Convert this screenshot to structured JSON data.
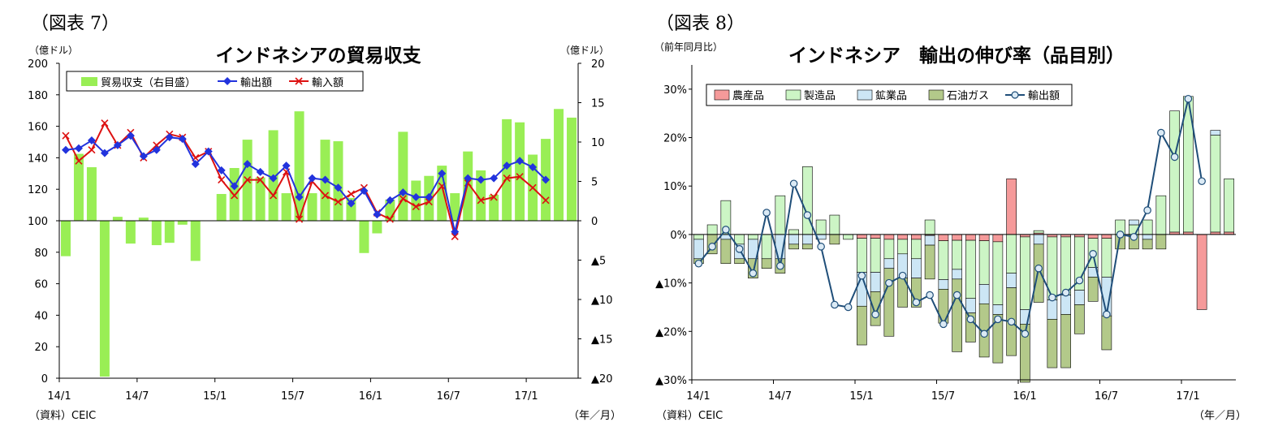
{
  "chart_data": [
    {
      "type": "bar+line",
      "figure_label": "（図表 7）",
      "title": "インドネシアの貿易収支",
      "left_unit": "（億ドル）",
      "right_unit": "（億ドル）",
      "source": "（資料）CEIC",
      "x_unit": "（年／月）",
      "left_ylim": [
        0,
        200
      ],
      "left_ticks": [
        "0",
        "20",
        "40",
        "60",
        "80",
        "100",
        "120",
        "140",
        "160",
        "180",
        "200"
      ],
      "right_ylim": [
        -20,
        20
      ],
      "right_ticks": [
        "▲20",
        "▲15",
        "▲10",
        "▲5",
        "0",
        "5",
        "10",
        "15",
        "20"
      ],
      "x_ticks": [
        "14/1",
        "14/7",
        "15/1",
        "15/7",
        "16/1",
        "16/7",
        "17/1"
      ],
      "series": [
        {
          "name": "貿易収支（右目盛）",
          "color": "#99ee55",
          "axis": "right",
          "values": [
            -4.5,
            8.5,
            6.8,
            -19.8,
            0.5,
            -2.9,
            0.4,
            -3.1,
            -2.8,
            -0.5,
            -5.1,
            0,
            3.4,
            6.7,
            10.3,
            5.5,
            11.5,
            3.5,
            13.9,
            3.5,
            10.3,
            10.1,
            2.9,
            -4.1,
            -1.6,
            2.7,
            11.3,
            5.1,
            5.7,
            7.0,
            3.5,
            8.8,
            6.4,
            3.3,
            12.9,
            12.5,
            8.4,
            10.4,
            14.2,
            13.1
          ]
        },
        {
          "name": "輸出額",
          "color": "#2233dd",
          "axis": "left",
          "values": [
            145,
            146,
            151,
            143,
            148,
            154,
            141,
            145,
            153,
            152,
            136,
            144,
            132,
            122,
            136,
            131,
            127,
            135,
            115,
            127,
            126,
            121,
            111,
            119,
            104,
            113,
            118,
            115,
            115,
            130,
            93,
            127,
            126,
            127,
            135,
            138,
            134,
            126,
            null,
            null
          ]
        },
        {
          "name": "輸入額",
          "color": "#dd1111",
          "axis": "left",
          "values": [
            154,
            138,
            145,
            162,
            148,
            156,
            140,
            148,
            155,
            153,
            140,
            144,
            126,
            116,
            126,
            126,
            116,
            131,
            101,
            125,
            116,
            112,
            117,
            121,
            105,
            101,
            114,
            109,
            112,
            122,
            90,
            124,
            113,
            115,
            127,
            128,
            121,
            113,
            null,
            null
          ]
        }
      ]
    },
    {
      "type": "stacked-bar+line",
      "figure_label": "（図表 8）",
      "title": "インドネシア　輸出の伸び率（品目別）",
      "y_unit": "（前年同月比）",
      "source": "（資料）CEIC",
      "x_unit": "（年／月）",
      "ylim": [
        -30,
        35
      ],
      "y_ticks": [
        "▲30%",
        "▲20%",
        "▲10%",
        "0%",
        "10%",
        "20%",
        "30%"
      ],
      "x_ticks": [
        "14/1",
        "14/7",
        "15/1",
        "15/7",
        "16/1",
        "16/7",
        "17/1"
      ],
      "series": [
        {
          "name": "農産品",
          "color": "#f59a9a",
          "values": [
            0,
            0,
            0,
            0,
            0,
            0,
            0,
            0,
            0,
            0,
            0,
            0,
            -0.8,
            -0.8,
            -1.0,
            -1.0,
            -1.0,
            -0.2,
            -1.3,
            -1.2,
            -1.2,
            -1.3,
            -1.5,
            11.5,
            -0.5,
            0.3,
            -0.5,
            -0.5,
            -0.5,
            -0.8,
            -0.8,
            0,
            0,
            0,
            0,
            0.5,
            0.5,
            -15.5,
            0.5,
            0.5
          ]
        },
        {
          "name": "製造品",
          "color": "#ccf5c5",
          "values": [
            -1,
            2,
            7,
            -2,
            -1,
            -5,
            8,
            1,
            14,
            3,
            4,
            -1,
            -7,
            -7,
            -4,
            -3,
            -4,
            3,
            -8,
            -6,
            -12,
            -9,
            -13,
            -8,
            -15,
            0.5,
            -13,
            -12,
            -11,
            -6,
            -8,
            3,
            2,
            3,
            8,
            25,
            28,
            0,
            20,
            11
          ]
        },
        {
          "name": "鉱業品",
          "color": "#cce6f5",
          "values": [
            -4,
            0,
            -1,
            -3,
            -4,
            0,
            -5,
            -2,
            -2,
            -1,
            0,
            0,
            -7,
            -4,
            -2,
            -5,
            -4,
            -2,
            -2,
            -2,
            -3,
            -4,
            -2,
            -3,
            -3,
            -2,
            -4,
            -4,
            -3,
            -2,
            -8,
            0,
            1,
            -1,
            0,
            0,
            0,
            0,
            1,
            0
          ]
        },
        {
          "name": "石油ガス",
          "color": "#b3c98a",
          "values": [
            -1,
            -4,
            -5,
            -1,
            -4,
            -2,
            -3,
            -1,
            -1,
            0,
            -2,
            0,
            -8,
            -7,
            -14,
            -6,
            -6,
            -7,
            -7,
            -15,
            -6,
            -11,
            -10,
            -14,
            -12,
            -12,
            -10,
            -11,
            -6,
            -5,
            -7,
            -3,
            -3,
            -2,
            -3,
            0,
            0,
            0,
            0,
            0
          ]
        },
        {
          "name": "輸出額",
          "color": "#1f4e79",
          "type": "line",
          "values": [
            -6,
            -2.5,
            1,
            -3,
            -8,
            4.5,
            -6.5,
            10.5,
            4,
            -2.5,
            -14.5,
            -15,
            -8.5,
            -16.5,
            -10,
            -8.5,
            -14,
            -12.5,
            -18.5,
            -12.5,
            -17.5,
            -20.5,
            -17.5,
            -18,
            -20.5,
            -7,
            -13,
            -12,
            -9.5,
            -4,
            -16.5,
            0,
            -0.5,
            5,
            21,
            16,
            28,
            11,
            null,
            null
          ]
        }
      ]
    }
  ]
}
